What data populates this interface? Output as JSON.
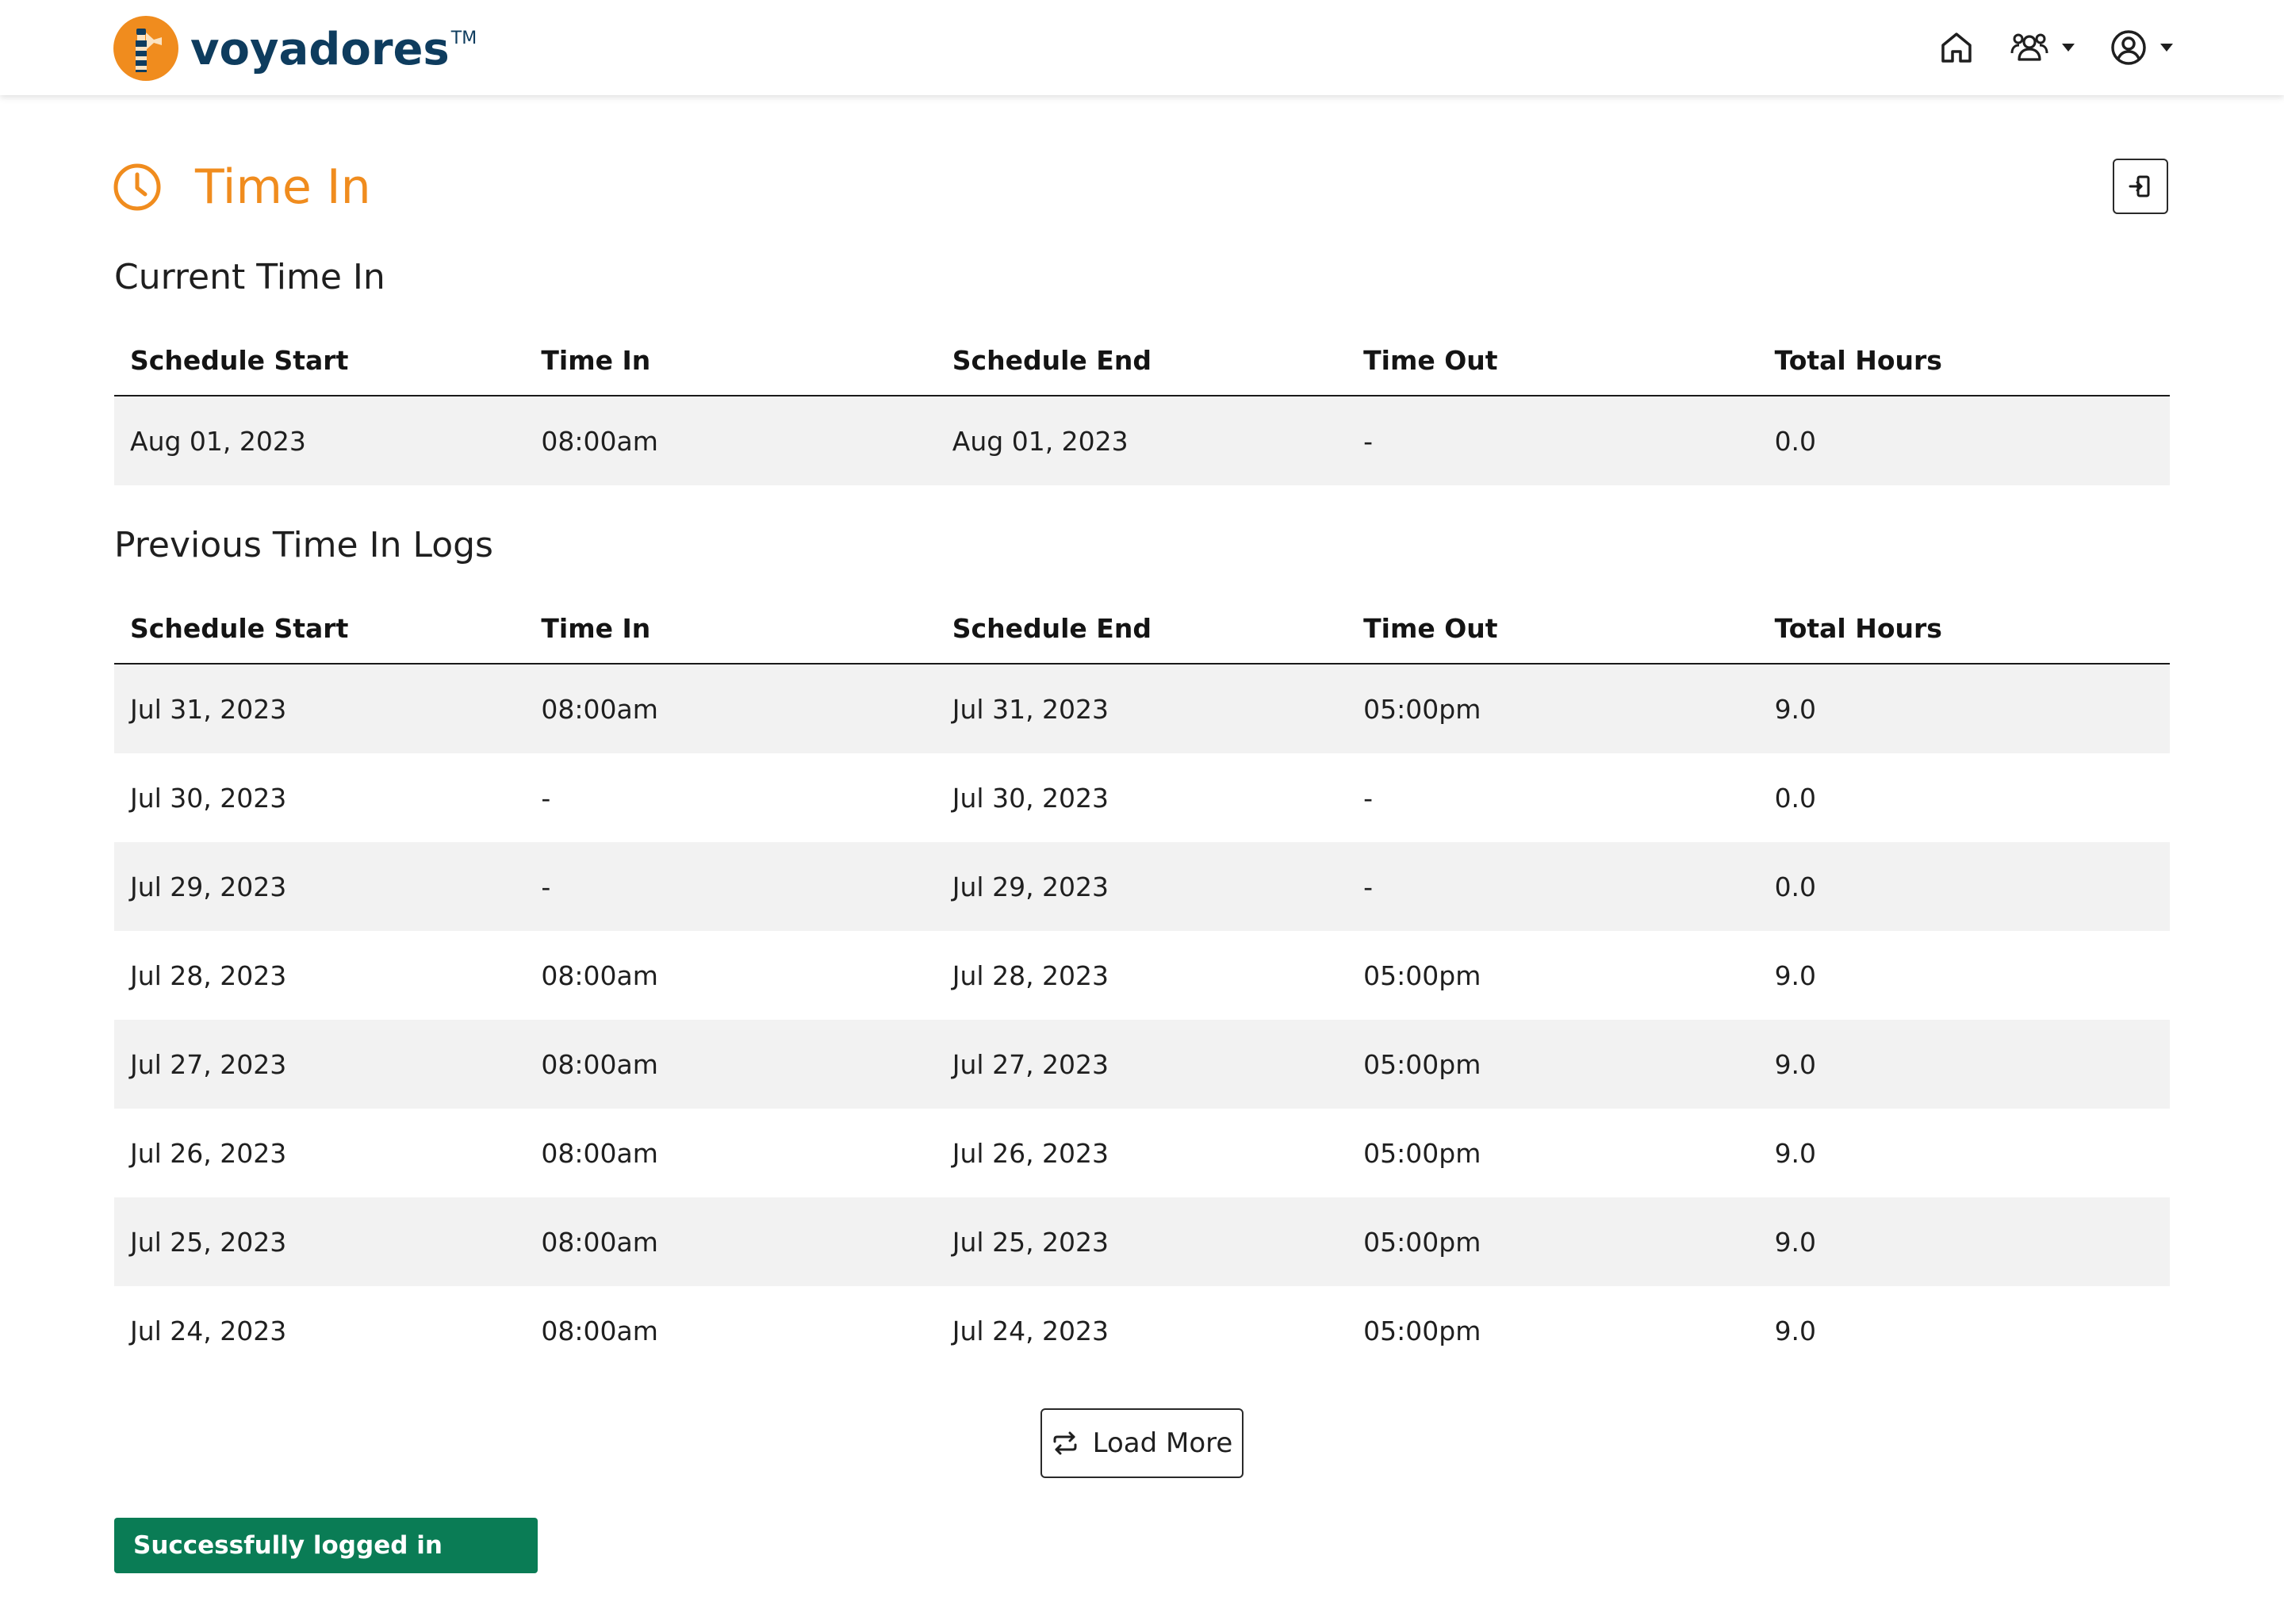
{
  "header": {
    "brand": "voyadores",
    "trademark": "TM",
    "nav": [
      {
        "icon": "home-icon"
      },
      {
        "icon": "users-icon",
        "has_dropdown": true
      },
      {
        "icon": "account-icon",
        "has_dropdown": true
      }
    ]
  },
  "page": {
    "title": "Time In",
    "title_icon": "clock-icon",
    "action_icon": "sign-in-icon"
  },
  "colors": {
    "accent": "#f08c1e",
    "brand_text": "#0e3c5e",
    "toast_bg": "#0a7c55",
    "row_shade": "#f2f2f2"
  },
  "current": {
    "heading": "Current Time In",
    "columns": [
      "Schedule Start",
      "Time In",
      "Schedule End",
      "Time Out",
      "Total Hours"
    ],
    "rows": [
      [
        "Aug 01, 2023",
        "08:00am",
        "Aug 01, 2023",
        "-",
        "0.0"
      ]
    ]
  },
  "previous": {
    "heading": "Previous Time In Logs",
    "columns": [
      "Schedule Start",
      "Time In",
      "Schedule End",
      "Time Out",
      "Total Hours"
    ],
    "rows": [
      [
        "Jul 31, 2023",
        "08:00am",
        "Jul 31, 2023",
        "05:00pm",
        "9.0"
      ],
      [
        "Jul 30, 2023",
        "-",
        "Jul 30, 2023",
        "-",
        "0.0"
      ],
      [
        "Jul 29, 2023",
        "-",
        "Jul 29, 2023",
        "-",
        "0.0"
      ],
      [
        "Jul 28, 2023",
        "08:00am",
        "Jul 28, 2023",
        "05:00pm",
        "9.0"
      ],
      [
        "Jul 27, 2023",
        "08:00am",
        "Jul 27, 2023",
        "05:00pm",
        "9.0"
      ],
      [
        "Jul 26, 2023",
        "08:00am",
        "Jul 26, 2023",
        "05:00pm",
        "9.0"
      ],
      [
        "Jul 25, 2023",
        "08:00am",
        "Jul 25, 2023",
        "05:00pm",
        "9.0"
      ],
      [
        "Jul 24, 2023",
        "08:00am",
        "Jul 24, 2023",
        "05:00pm",
        "9.0"
      ]
    ]
  },
  "load_more": {
    "label": "Load More",
    "icon": "repeat-icon"
  },
  "toast": {
    "message": "Successfully logged in"
  }
}
